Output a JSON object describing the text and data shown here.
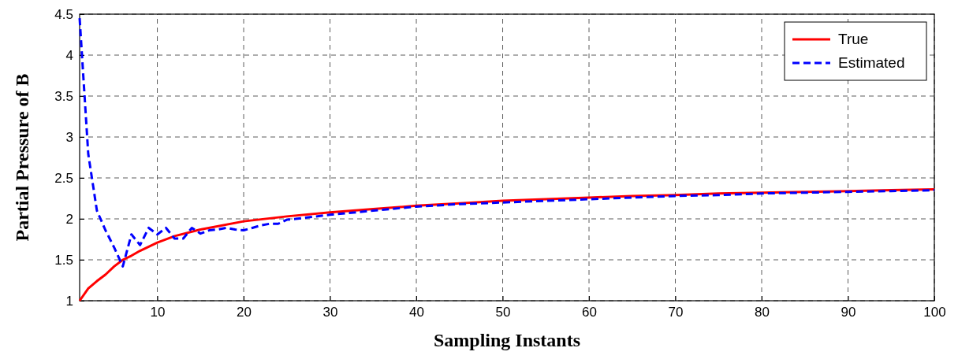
{
  "chart_data": {
    "type": "line",
    "xlabel": "Sampling Instants",
    "ylabel": "Partial Pressure of B",
    "xlim": [
      1,
      100
    ],
    "ylim": [
      1,
      4.5
    ],
    "xticks": [
      10,
      20,
      30,
      40,
      50,
      60,
      70,
      80,
      90,
      100
    ],
    "yticks": [
      1,
      1.5,
      2,
      2.5,
      3,
      3.5,
      4,
      4.5
    ],
    "grid": true,
    "legend": "top right",
    "series": [
      {
        "name": "True",
        "color": "#ff0000",
        "line_style": "solid",
        "x": [
          1,
          2,
          3,
          4,
          5,
          6,
          7,
          8,
          9,
          10,
          12,
          15,
          20,
          25,
          30,
          35,
          40,
          45,
          50,
          55,
          60,
          65,
          70,
          75,
          80,
          85,
          90,
          95,
          100
        ],
        "values": [
          1.0,
          1.15,
          1.24,
          1.32,
          1.42,
          1.5,
          1.55,
          1.61,
          1.66,
          1.71,
          1.79,
          1.87,
          1.97,
          2.03,
          2.08,
          2.12,
          2.16,
          2.19,
          2.22,
          2.24,
          2.26,
          2.28,
          2.29,
          2.31,
          2.32,
          2.33,
          2.34,
          2.35,
          2.36
        ]
      },
      {
        "name": "Estimated",
        "color": "#0000ff",
        "line_style": "dashed",
        "x": [
          1,
          2,
          3,
          4,
          5,
          6,
          7,
          8,
          9,
          10,
          11,
          12,
          13,
          14,
          15,
          16,
          17,
          18,
          19,
          20,
          21,
          22,
          23,
          24,
          25,
          26,
          30,
          35,
          40,
          45,
          50,
          55,
          60,
          65,
          70,
          75,
          80,
          85,
          90,
          95,
          100
        ],
        "values": [
          4.45,
          2.79,
          2.1,
          1.86,
          1.65,
          1.42,
          1.81,
          1.68,
          1.89,
          1.81,
          1.89,
          1.76,
          1.76,
          1.89,
          1.82,
          1.86,
          1.87,
          1.89,
          1.87,
          1.86,
          1.89,
          1.92,
          1.94,
          1.94,
          1.99,
          2.0,
          2.05,
          2.1,
          2.15,
          2.18,
          2.2,
          2.22,
          2.24,
          2.26,
          2.28,
          2.29,
          2.31,
          2.32,
          2.33,
          2.34,
          2.35
        ]
      }
    ]
  }
}
